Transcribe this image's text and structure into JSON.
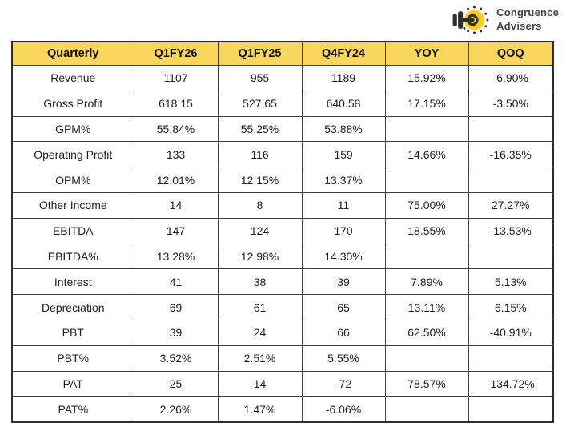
{
  "logo": {
    "icon": "key-icon",
    "brand_line1": "Congruence",
    "brand_line2": "Advisers"
  },
  "colors": {
    "header_bg": "#F8D65C",
    "border": "#3d3d3d",
    "text": "#1f1f1f",
    "logo_yellow": "#FFC91D",
    "logo_text": "#474747"
  },
  "chart_data": {
    "type": "table",
    "title": "Quarterly results table",
    "columns": [
      "Quarterly",
      "Q1FY26",
      "Q1FY25",
      "Q4FY24",
      "YOY",
      "QOQ"
    ],
    "rows": [
      [
        "Revenue",
        "1107",
        "955",
        "1189",
        "15.92%",
        "-6.90%"
      ],
      [
        "Gross Profit",
        "618.15",
        "527.65",
        "640.58",
        "17.15%",
        "-3.50%"
      ],
      [
        "GPM%",
        "55.84%",
        "55.25%",
        "53.88%",
        "",
        ""
      ],
      [
        "Operating Profit",
        "133",
        "116",
        "159",
        "14.66%",
        "-16.35%"
      ],
      [
        "OPM%",
        "12.01%",
        "12.15%",
        "13.37%",
        "",
        ""
      ],
      [
        "Other Income",
        "14",
        "8",
        "11",
        "75.00%",
        "27.27%"
      ],
      [
        "EBITDA",
        "147",
        "124",
        "170",
        "18.55%",
        "-13.53%"
      ],
      [
        "EBITDA%",
        "13.28%",
        "12.98%",
        "14.30%",
        "",
        ""
      ],
      [
        "Interest",
        "41",
        "38",
        "39",
        "7.89%",
        "5.13%"
      ],
      [
        "Depreciation",
        "69",
        "61",
        "65",
        "13.11%",
        "6.15%"
      ],
      [
        "PBT",
        "39",
        "24",
        "66",
        "62.50%",
        "-40.91%"
      ],
      [
        "PBT%",
        "3.52%",
        "2.51%",
        "5.55%",
        "",
        ""
      ],
      [
        "PAT",
        "25",
        "14",
        "-72",
        "78.57%",
        "-134.72%"
      ],
      [
        "PAT%",
        "2.26%",
        "1.47%",
        "-6.06%",
        "",
        ""
      ]
    ],
    "layout": {
      "header_position": "top",
      "first_column_role": "row-labels",
      "grid": true
    }
  }
}
